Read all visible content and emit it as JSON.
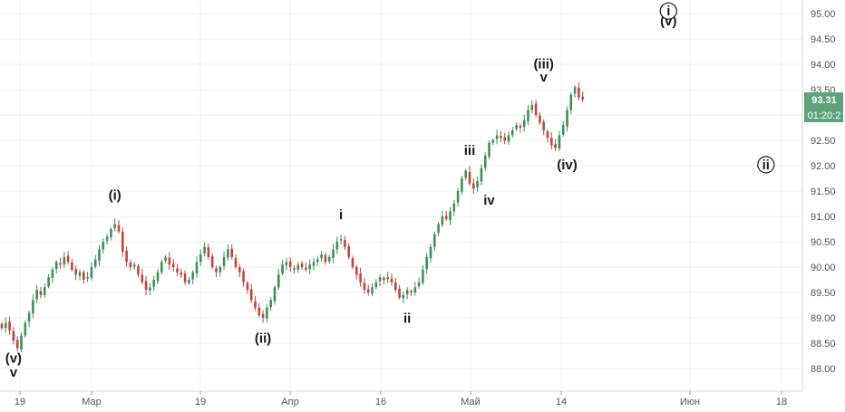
{
  "chart_data": {
    "type": "candlestick",
    "grid": true,
    "price_axis": {
      "position": "right",
      "ticks": [
        "95.00",
        "94.50",
        "94.00",
        "93.50",
        "93.00",
        "92.50",
        "92.00",
        "91.50",
        "91.00",
        "90.50",
        "90.00",
        "89.50",
        "89.00",
        "88.50",
        "88.00"
      ],
      "range": [
        87.6,
        95.25
      ]
    },
    "time_axis": {
      "labels": [
        "19",
        "Мар",
        "19",
        "Апр",
        "16",
        "Май",
        "14",
        "Июн",
        "18"
      ]
    },
    "last_price": {
      "value": "93.31",
      "timer": "01:20:2",
      "color": "#5fa37d"
    },
    "colors": {
      "up": "#3f8f57",
      "down": "#c1453a"
    },
    "series": [
      [
        0,
        88.8
      ],
      [
        1,
        88.9
      ],
      [
        2,
        88.75
      ],
      [
        3,
        88.55
      ],
      [
        4,
        88.4
      ],
      [
        5,
        88.65
      ],
      [
        6,
        88.9
      ],
      [
        7,
        89.1
      ],
      [
        8,
        89.35
      ],
      [
        9,
        89.55
      ],
      [
        10,
        89.45
      ],
      [
        11,
        89.6
      ],
      [
        12,
        89.8
      ],
      [
        13,
        89.95
      ],
      [
        14,
        90.1
      ],
      [
        15,
        90.05
      ],
      [
        16,
        90.2
      ],
      [
        17,
        90.1
      ],
      [
        18,
        89.95
      ],
      [
        19,
        89.85
      ],
      [
        20,
        89.9
      ],
      [
        21,
        89.75
      ],
      [
        22,
        89.8
      ],
      [
        23,
        90.0
      ],
      [
        24,
        90.15
      ],
      [
        25,
        90.35
      ],
      [
        26,
        90.5
      ],
      [
        27,
        90.6
      ],
      [
        28,
        90.75
      ],
      [
        29,
        90.85
      ],
      [
        30,
        90.7
      ],
      [
        31,
        90.3
      ],
      [
        32,
        90.1
      ],
      [
        33,
        90.0
      ],
      [
        34,
        90.05
      ],
      [
        35,
        89.85
      ],
      [
        36,
        89.7
      ],
      [
        37,
        89.55
      ],
      [
        38,
        89.6
      ],
      [
        39,
        89.75
      ],
      [
        40,
        89.9
      ],
      [
        41,
        90.1
      ],
      [
        42,
        90.2
      ],
      [
        43,
        90.05
      ],
      [
        44,
        90.0
      ],
      [
        45,
        89.9
      ],
      [
        46,
        89.85
      ],
      [
        47,
        89.7
      ],
      [
        48,
        89.75
      ],
      [
        49,
        89.9
      ],
      [
        50,
        90.1
      ],
      [
        51,
        90.25
      ],
      [
        52,
        90.4
      ],
      [
        53,
        90.2
      ],
      [
        54,
        90.0
      ],
      [
        55,
        89.9
      ],
      [
        56,
        90.0
      ],
      [
        57,
        90.2
      ],
      [
        58,
        90.35
      ],
      [
        59,
        90.2
      ],
      [
        60,
        90.0
      ],
      [
        61,
        89.9
      ],
      [
        62,
        89.7
      ],
      [
        63,
        89.55
      ],
      [
        64,
        89.35
      ],
      [
        65,
        89.2
      ],
      [
        66,
        89.05
      ],
      [
        67,
        89.0
      ],
      [
        68,
        89.2
      ],
      [
        69,
        89.35
      ],
      [
        70,
        89.6
      ],
      [
        71,
        89.85
      ],
      [
        72,
        90.05
      ],
      [
        73,
        90.1
      ],
      [
        74,
        90.0
      ],
      [
        75,
        89.95
      ],
      [
        76,
        90.05
      ],
      [
        77,
        90.0
      ],
      [
        78,
        89.95
      ],
      [
        79,
        90.05
      ],
      [
        80,
        90.1
      ],
      [
        81,
        90.15
      ],
      [
        82,
        90.25
      ],
      [
        83,
        90.1
      ],
      [
        84,
        90.2
      ],
      [
        85,
        90.35
      ],
      [
        86,
        90.5
      ],
      [
        87,
        90.55
      ],
      [
        88,
        90.4
      ],
      [
        89,
        90.2
      ],
      [
        90,
        90.0
      ],
      [
        91,
        89.85
      ],
      [
        92,
        89.7
      ],
      [
        93,
        89.55
      ],
      [
        94,
        89.5
      ],
      [
        95,
        89.6
      ],
      [
        96,
        89.7
      ],
      [
        97,
        89.8
      ],
      [
        98,
        89.75
      ],
      [
        99,
        89.8
      ],
      [
        100,
        89.7
      ],
      [
        101,
        89.55
      ],
      [
        102,
        89.4
      ],
      [
        103,
        89.45
      ],
      [
        104,
        89.55
      ],
      [
        105,
        89.5
      ],
      [
        106,
        89.6
      ],
      [
        107,
        89.7
      ],
      [
        108,
        89.95
      ],
      [
        109,
        90.2
      ],
      [
        110,
        90.4
      ],
      [
        111,
        90.65
      ],
      [
        112,
        90.85
      ],
      [
        113,
        91.0
      ],
      [
        114,
        90.95
      ],
      [
        115,
        91.1
      ],
      [
        116,
        91.25
      ],
      [
        117,
        91.5
      ],
      [
        118,
        91.75
      ],
      [
        119,
        91.9
      ],
      [
        120,
        91.65
      ],
      [
        121,
        91.55
      ],
      [
        122,
        91.7
      ],
      [
        123,
        91.95
      ],
      [
        124,
        92.2
      ],
      [
        125,
        92.45
      ],
      [
        126,
        92.5
      ],
      [
        127,
        92.6
      ],
      [
        128,
        92.55
      ],
      [
        129,
        92.5
      ],
      [
        130,
        92.6
      ],
      [
        131,
        92.7
      ],
      [
        132,
        92.8
      ],
      [
        133,
        92.75
      ],
      [
        134,
        92.9
      ],
      [
        135,
        93.1
      ],
      [
        136,
        93.2
      ],
      [
        137,
        93.0
      ],
      [
        138,
        92.85
      ],
      [
        139,
        92.7
      ],
      [
        140,
        92.55
      ],
      [
        141,
        92.4
      ],
      [
        142,
        92.35
      ],
      [
        143,
        92.6
      ],
      [
        144,
        92.8
      ],
      [
        145,
        93.1
      ],
      [
        146,
        93.4
      ],
      [
        147,
        93.55
      ],
      [
        148,
        93.35
      ],
      [
        149,
        93.31
      ]
    ],
    "annotations": [
      {
        "text": "(v)",
        "x": 3,
        "y": 88.12
      },
      {
        "text": "v",
        "x": 3,
        "y": 87.84
      },
      {
        "text": "(i)",
        "x": 29,
        "y": 91.33
      },
      {
        "text": "(ii)",
        "x": 67,
        "y": 88.51
      },
      {
        "text": "i",
        "x": 87,
        "y": 90.95
      },
      {
        "text": "ii",
        "x": 104,
        "y": 88.9
      },
      {
        "text": "iii",
        "x": 120,
        "y": 92.21
      },
      {
        "text": "iv",
        "x": 125,
        "y": 91.23
      },
      {
        "text": "(iii)",
        "x": 139,
        "y": 93.92
      },
      {
        "text": "v",
        "x": 139,
        "y": 93.66
      },
      {
        "text": "(iv)",
        "x": 145,
        "y": 91.93
      },
      {
        "text": "(v)",
        "x": 171,
        "y": 94.77
      }
    ],
    "circled_labels": [
      {
        "text": "i",
        "x": 171,
        "y": 95.05
      },
      {
        "text": "ii",
        "x": 196,
        "y": 92.02
      }
    ]
  }
}
